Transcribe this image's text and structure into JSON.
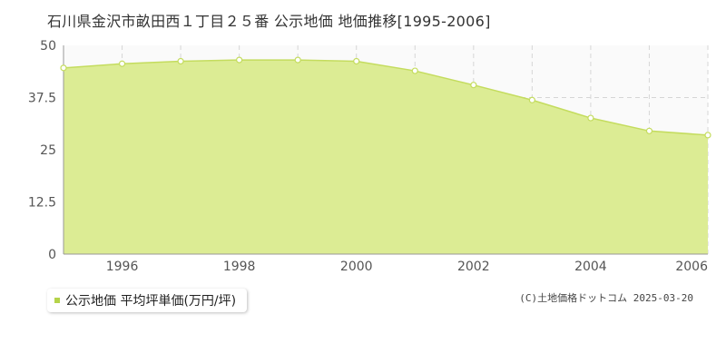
{
  "title": "石川県金沢市畝田西１丁目２５番 公示地価 地価推移[1995-2006]",
  "copyright": "(C)土地価格ドットコム 2025-03-20",
  "colors": {
    "fill": "#dcec94",
    "line": "#c4dc5e",
    "point_fill": "#ffffff",
    "grid": "#d6d6d6",
    "legend_swatch": "#b5d34a"
  },
  "chart_data": {
    "type": "area",
    "title": "石川県金沢市畝田西１丁目２５番 公示地価 地価推移[1995-2006]",
    "xlabel": "",
    "ylabel": "",
    "x": [
      1995,
      1996,
      1997,
      1998,
      1999,
      2000,
      2001,
      2002,
      2003,
      2004,
      2005,
      2006
    ],
    "xlim": [
      1995,
      2006
    ],
    "ylim": [
      0,
      50
    ],
    "x_ticks": [
      "1996",
      "1998",
      "2000",
      "2002",
      "2004",
      "2006"
    ],
    "x_tick_values": [
      1996,
      1998,
      2000,
      2002,
      2004,
      2006
    ],
    "y_ticks": [
      "0",
      "12.5",
      "25",
      "37.5",
      "50"
    ],
    "y_tick_values": [
      0,
      12.5,
      25,
      37.5,
      50
    ],
    "grid": true,
    "legend_position": "bottom-left",
    "series": [
      {
        "name": "公示地価 平均坪単価(万円/坪)",
        "values": [
          44.6,
          45.6,
          46.2,
          46.5,
          46.5,
          46.2,
          43.9,
          40.5,
          36.9,
          32.6,
          29.5,
          28.5
        ]
      }
    ]
  }
}
